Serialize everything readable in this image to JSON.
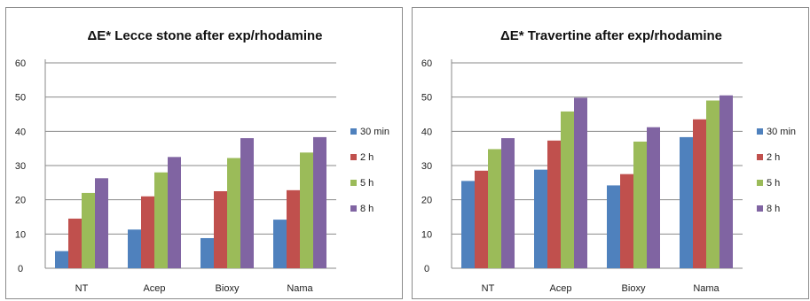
{
  "chart_data": [
    {
      "type": "bar",
      "title": "ΔE* Lecce stone after exp/rhodamine",
      "categories": [
        "NT",
        "Acep",
        "Bioxy",
        "Nama"
      ],
      "ylim": [
        0,
        60
      ],
      "yticks": [
        0,
        10,
        20,
        30,
        40,
        50,
        60
      ],
      "grid": true,
      "legend_position": "right",
      "series": [
        {
          "name": "30 min",
          "color": "#4f81bd",
          "values": [
            5,
            11.3,
            8.8,
            14.2
          ]
        },
        {
          "name": "2 h",
          "color": "#c0504d",
          "values": [
            14.5,
            21,
            22.5,
            22.8
          ]
        },
        {
          "name": "5 h",
          "color": "#9bbb59",
          "values": [
            22,
            28,
            32.2,
            33.8
          ]
        },
        {
          "name": "8 h",
          "color": "#8064a2",
          "values": [
            26.3,
            32.5,
            38,
            38.3
          ]
        }
      ]
    },
    {
      "type": "bar",
      "title": "ΔE* Travertine after exp/rhodamine",
      "categories": [
        "NT",
        "Acep",
        "Bioxy",
        "Nama"
      ],
      "ylim": [
        0,
        60
      ],
      "yticks": [
        0,
        10,
        20,
        30,
        40,
        50,
        60
      ],
      "grid": true,
      "legend_position": "right",
      "series": [
        {
          "name": "30 min",
          "color": "#4f81bd",
          "values": [
            25.5,
            28.8,
            24.2,
            38.3
          ]
        },
        {
          "name": "2 h",
          "color": "#c0504d",
          "values": [
            28.5,
            37.3,
            27.5,
            43.5
          ]
        },
        {
          "name": "5 h",
          "color": "#9bbb59",
          "values": [
            34.8,
            45.8,
            37,
            49
          ]
        },
        {
          "name": "8 h",
          "color": "#8064a2",
          "values": [
            38,
            49.8,
            41.2,
            50.5
          ]
        }
      ]
    }
  ]
}
